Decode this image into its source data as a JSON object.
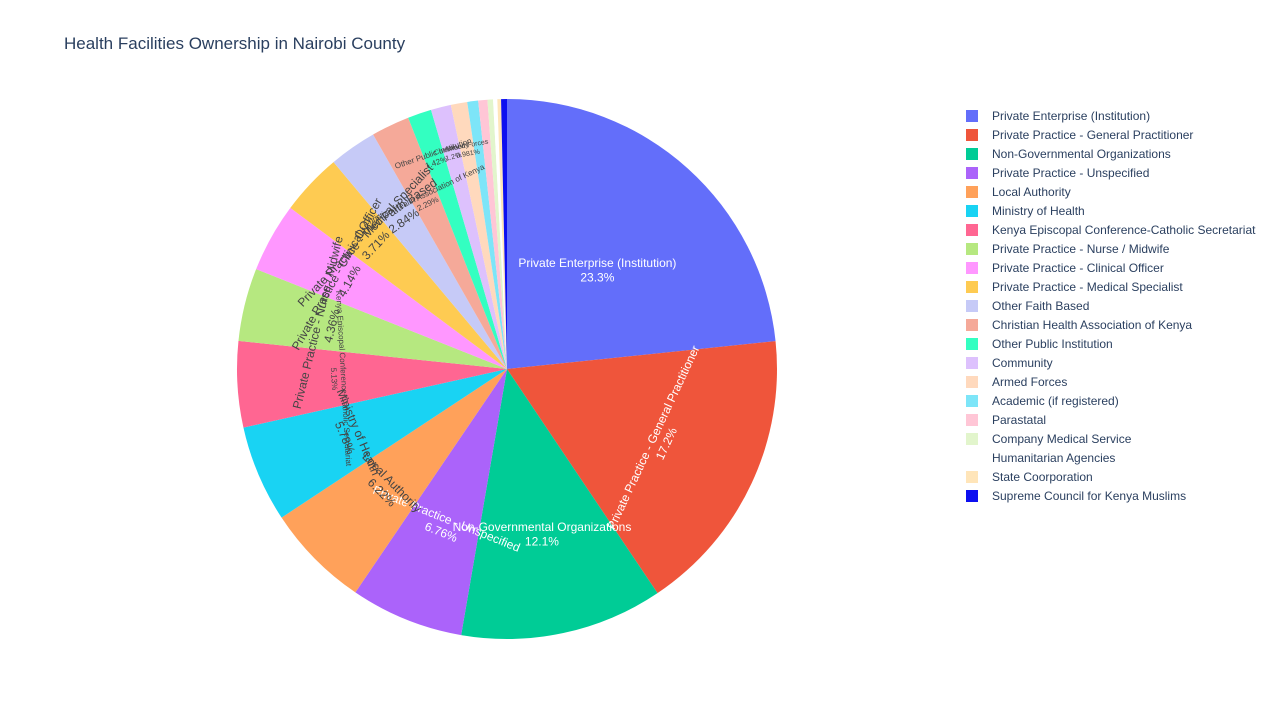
{
  "title": "Health Facilities Ownership in Nairobi County",
  "chart_data": {
    "type": "pie",
    "title": "Health Facilities Ownership in Nairobi County",
    "legend_position": "right",
    "direction": "clockwise",
    "slices": [
      {
        "label": "Private Enterprise (Institution)",
        "value": 23.3,
        "text": "23.3%",
        "color": "#636efa"
      },
      {
        "label": "Private Practice - General Practitioner",
        "value": 17.2,
        "text": "17.2%",
        "color": "#ef553b"
      },
      {
        "label": "Non-Governmental Organizations",
        "value": 12.1,
        "text": "12.1%",
        "color": "#00cc96"
      },
      {
        "label": "Private Practice - Unspecified",
        "value": 6.76,
        "text": "6.76%",
        "color": "#ab63fa"
      },
      {
        "label": "Local Authority",
        "value": 6.22,
        "text": "6.22%",
        "color": "#ffa15a"
      },
      {
        "label": "Ministry of Health",
        "value": 5.78,
        "text": "5.78%",
        "color": "#19d3f3"
      },
      {
        "label": "Kenya Episcopal Conference-Catholic Secretariat",
        "value": 5.13,
        "text": "5.13%",
        "color": "#ff6692"
      },
      {
        "label": "Private Practice - Nurse / Midwife",
        "value": 4.36,
        "text": "4.36%",
        "color": "#b6e880"
      },
      {
        "label": "Private Practice - Clinical Officer",
        "value": 4.14,
        "text": "4.14%",
        "color": "#ff97ff"
      },
      {
        "label": "Private Practice - Medical Specialist",
        "value": 3.71,
        "text": "3.71%",
        "color": "#fecb52"
      },
      {
        "label": "Other Faith Based",
        "value": 2.84,
        "text": "2.84%",
        "color": "#c6caf7"
      },
      {
        "label": "Christian Health Association of Kenya",
        "value": 2.29,
        "text": "2.29%",
        "color": "#f5a999"
      },
      {
        "label": "Other Public Institution",
        "value": 1.42,
        "text": "1.42%",
        "color": "#33ffc1"
      },
      {
        "label": "Community",
        "value": 1.2,
        "text": "1.2%",
        "color": "#ddc1fd"
      },
      {
        "label": "Armed Forces",
        "value": 0.981,
        "text": "0.981%",
        "color": "#ffd9bd"
      },
      {
        "label": "Academic (if registered)",
        "value": 0.65,
        "text": "",
        "color": "#7de5f8"
      },
      {
        "label": "Parastatal",
        "value": 0.55,
        "text": "",
        "color": "#ffc6d6"
      },
      {
        "label": "Company Medical Service",
        "value": 0.33,
        "text": "",
        "color": "#e2f5cc"
      },
      {
        "label": "Humanitarian Agencies",
        "value": 0.25,
        "text": "",
        "color": "#ffffff"
      },
      {
        "label": "State Coorporation",
        "value": 0.22,
        "text": "",
        "color": "#ffe5b9"
      },
      {
        "label": "Supreme Council for Kenya Muslims",
        "value": 0.35,
        "text": "",
        "color": "#0d0ff0"
      }
    ]
  }
}
